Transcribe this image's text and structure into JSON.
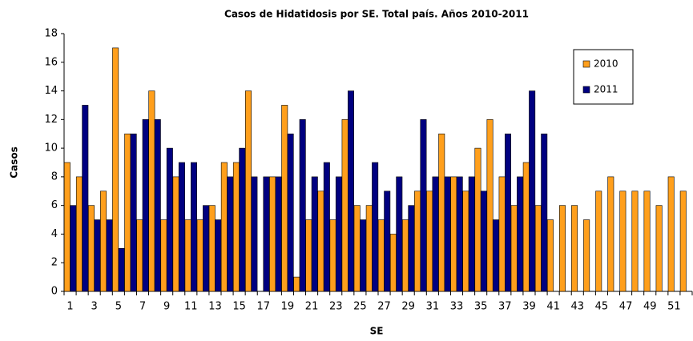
{
  "chart_data": {
    "type": "bar",
    "title": "Casos de Hidatidosis por SE. Total país. Años 2010-2011",
    "x_label": "SE",
    "y_label": "Casos",
    "categories": [
      1,
      null,
      3,
      null,
      5,
      null,
      7,
      null,
      9,
      null,
      11,
      null,
      13,
      null,
      15,
      null,
      17,
      null,
      19,
      null,
      21,
      null,
      23,
      null,
      25,
      null,
      27,
      null,
      29,
      null,
      31,
      null,
      33,
      null,
      35,
      null,
      37,
      null,
      39,
      null,
      41,
      null,
      43,
      null,
      45,
      null,
      47,
      null,
      49,
      null,
      51,
      null
    ],
    "series": [
      {
        "name": "2010",
        "color": "#ff9f1c",
        "values": [
          9,
          8,
          6,
          7,
          17,
          11,
          5,
          14,
          5,
          8,
          5,
          5,
          6,
          9,
          9,
          14,
          0,
          8,
          13,
          1,
          5,
          7,
          5,
          12,
          6,
          6,
          5,
          4,
          5,
          7,
          7,
          11,
          8,
          7,
          10,
          12,
          8,
          6,
          9,
          6,
          5,
          6,
          6,
          5,
          7,
          8,
          7,
          7,
          7,
          6,
          8,
          7
        ]
      },
      {
        "name": "2011",
        "color": "#000080",
        "values": [
          6,
          13,
          5,
          5,
          3,
          11,
          12,
          12,
          10,
          9,
          9,
          6,
          5,
          8,
          10,
          8,
          8,
          8,
          11,
          12,
          8,
          9,
          8,
          14,
          5,
          9,
          7,
          8,
          6,
          12,
          8,
          8,
          8,
          8,
          7,
          5,
          11,
          8,
          14,
          11,
          null,
          null,
          null,
          null,
          null,
          null,
          null,
          null,
          null,
          null,
          null,
          null
        ]
      }
    ],
    "ylim": [
      0,
      18
    ],
    "yticks": [
      0,
      2,
      4,
      6,
      8,
      10,
      12,
      14,
      16,
      18
    ],
    "legend": "top-right"
  }
}
